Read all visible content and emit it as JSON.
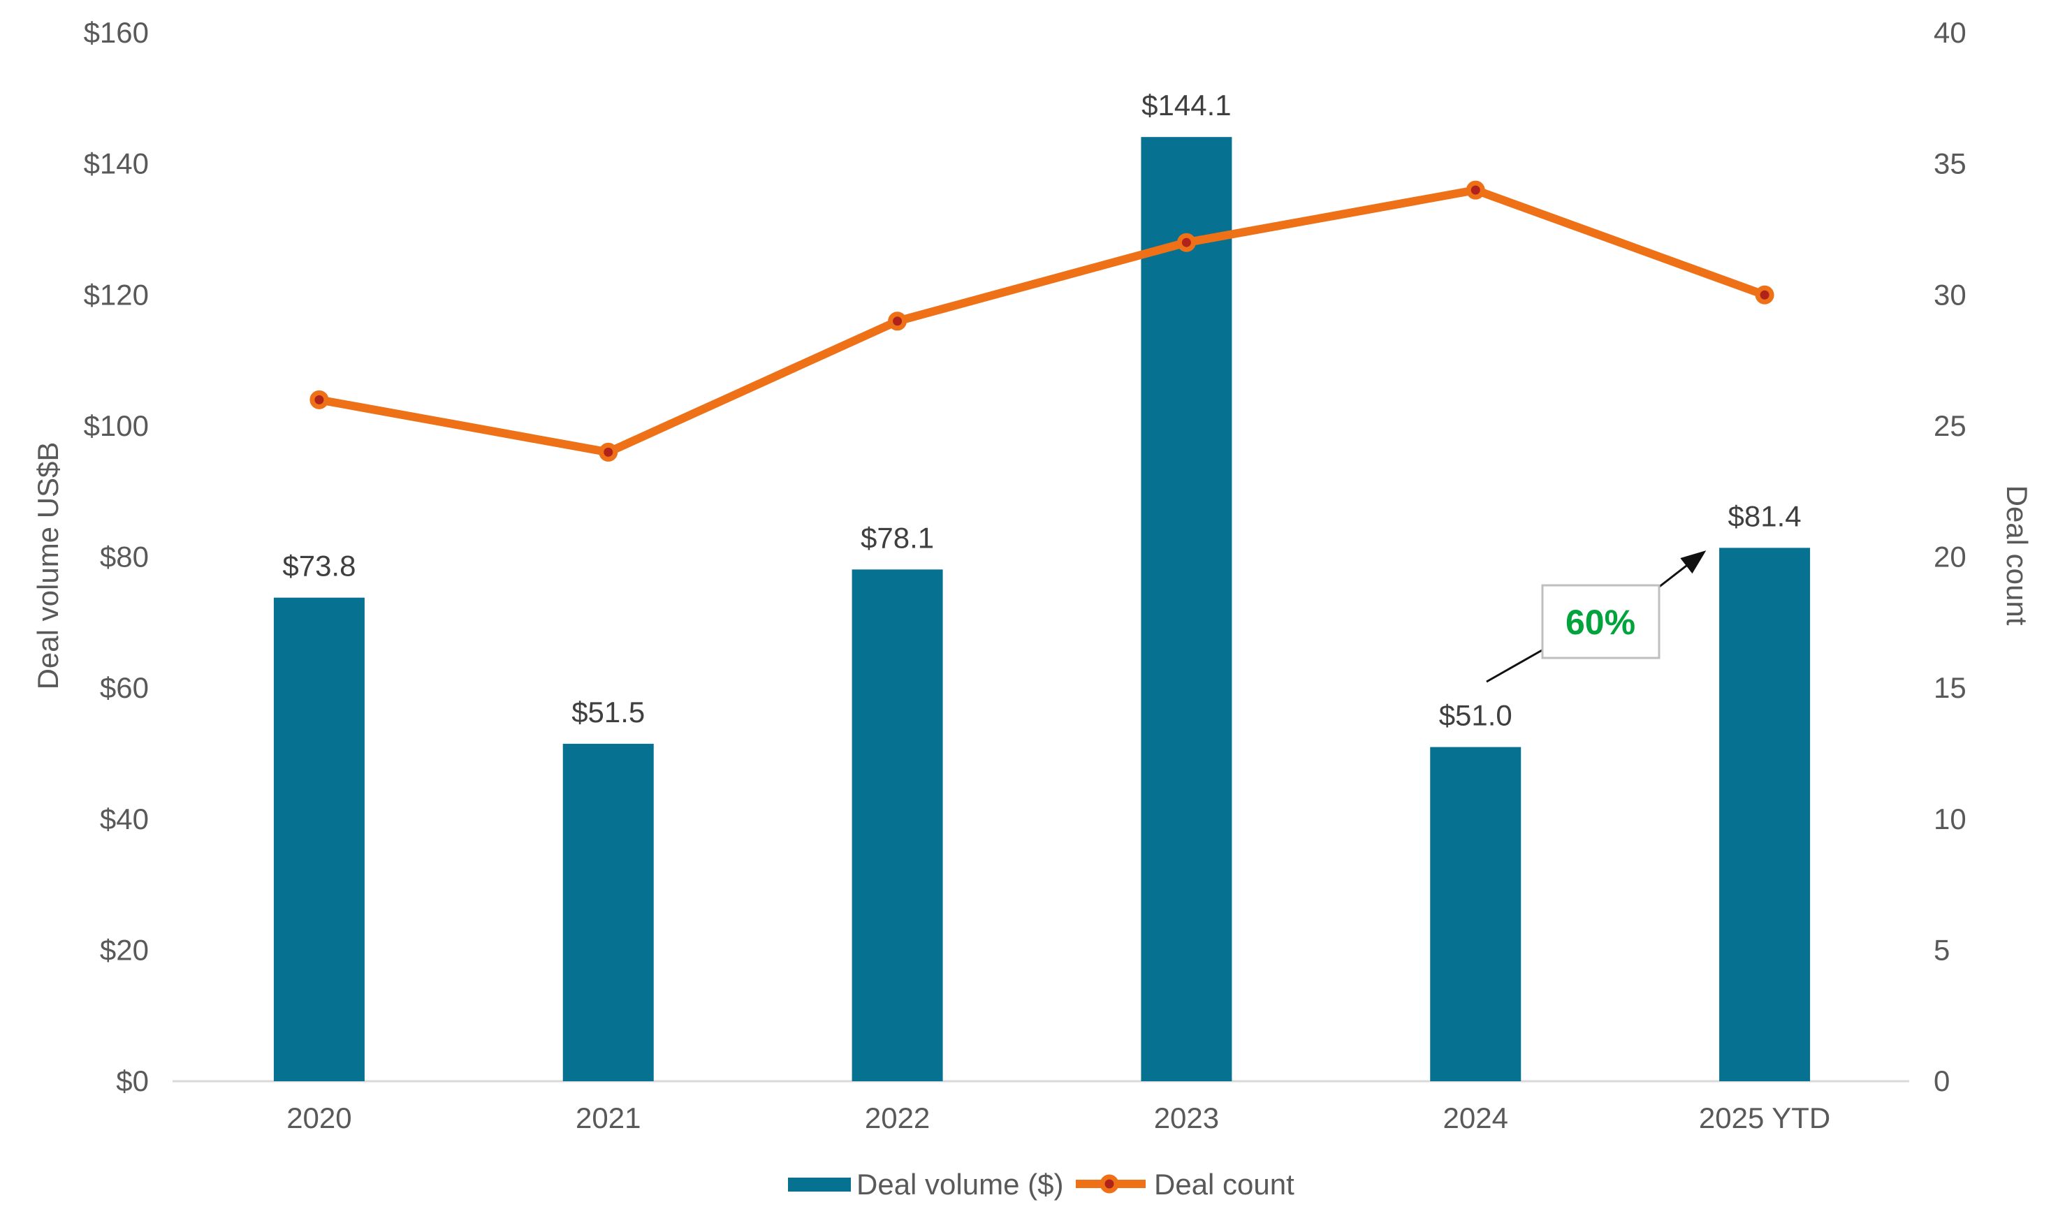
{
  "chart_data": {
    "type": "bar",
    "subtype": "combo-bar-line-dual-axis",
    "categories": [
      "2020",
      "2021",
      "2022",
      "2023",
      "2024",
      "2025 YTD"
    ],
    "series": [
      {
        "name": "Deal volume ($)",
        "type": "bar",
        "axis": "left",
        "values": [
          73.8,
          51.5,
          78.1,
          144.1,
          51.0,
          81.4
        ],
        "labels": [
          "$73.8",
          "$51.5",
          "$78.1",
          "$144.1",
          "$51.0",
          "$81.4"
        ],
        "color": "#077192"
      },
      {
        "name": "Deal count",
        "type": "line",
        "axis": "right",
        "values": [
          26,
          24,
          29,
          32,
          34,
          30
        ],
        "line_color": "#EE7118",
        "marker_color": "#AF231C"
      }
    ],
    "left_axis": {
      "title": "Deal volume US$B",
      "min": 0,
      "max": 160,
      "step": 20,
      "tick_labels": [
        "$0",
        "$20",
        "$40",
        "$60",
        "$80",
        "$100",
        "$120",
        "$140",
        "$160"
      ]
    },
    "right_axis": {
      "title": "Deal count",
      "min": 0,
      "max": 40,
      "step": 5,
      "tick_labels": [
        "0",
        "5",
        "10",
        "15",
        "20",
        "25",
        "30",
        "35",
        "40"
      ]
    },
    "legend": {
      "position": "bottom",
      "items": [
        "Deal volume ($)",
        "Deal count"
      ]
    },
    "annotation": {
      "text": "60%",
      "color": "#00A33C",
      "box_border": "#BFBFBF",
      "points_to": "2025 YTD"
    },
    "grid": false,
    "colors": {
      "background": "#FFFFFF",
      "tick_text": "#595959",
      "data_label_text": "#3F3F3F",
      "axis_line": "#D9D9D9",
      "arrow": "#111111"
    }
  }
}
